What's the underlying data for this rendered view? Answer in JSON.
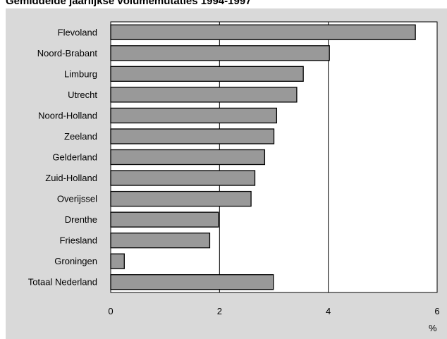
{
  "chart_data": {
    "type": "bar",
    "orientation": "horizontal",
    "title": "Gemiddelde jaarlijkse volumemutaties 1994-1997",
    "xlabel": "%",
    "ylabel": "",
    "xlim": [
      0,
      6
    ],
    "x_ticks": [
      "0",
      "2",
      "4",
      "6"
    ],
    "grid": "vertical",
    "categories": [
      "Flevoland",
      "Noord-Brabant",
      "Limburg",
      "Utrecht",
      "Noord-Holland",
      "Zeeland",
      "Gelderland",
      "Zuid-Holland",
      "Overijssel",
      "Drenthe",
      "Friesland",
      "Groningen",
      "Totaal Nederland"
    ],
    "values": [
      5.6,
      4.02,
      3.54,
      3.42,
      3.05,
      3.0,
      2.83,
      2.65,
      2.58,
      1.98,
      1.82,
      0.25,
      2.99
    ],
    "colors": {
      "bar": "#999999",
      "bar_edge": "#000000",
      "plot_bg": "#ffffff",
      "panel_bg": "#d9d9d9"
    }
  }
}
